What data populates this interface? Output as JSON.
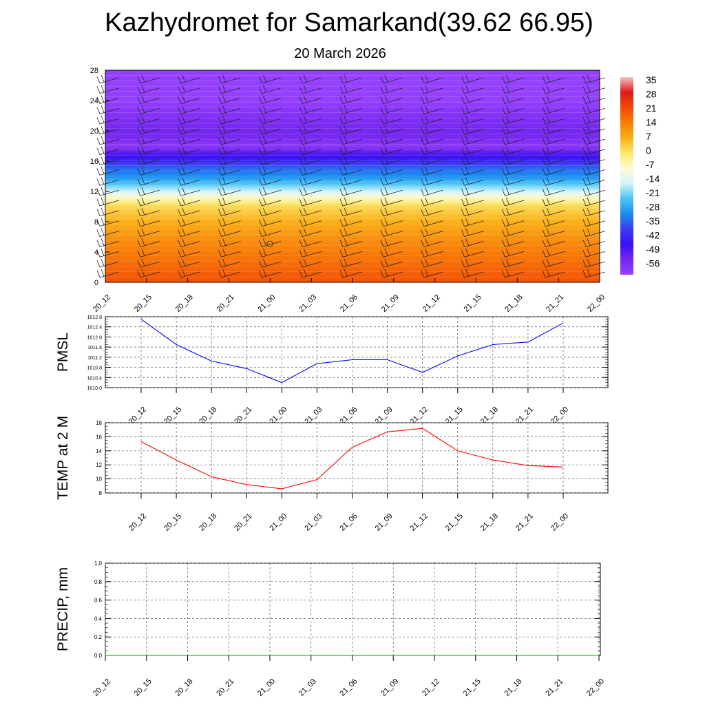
{
  "title": "Kazhydromet for Samarkand(39.62 66.95)",
  "subtitle": "20 March 2026",
  "colorbar": {
    "labels": [
      "35",
      "28",
      "21",
      "14",
      "7",
      "0",
      "-7",
      "-14",
      "-21",
      "-28",
      "-35",
      "-42",
      "-49",
      "-56"
    ],
    "stops": [
      "#f5c0c0",
      "#e01818",
      "#f24a06",
      "#f87d08",
      "#fbb01a",
      "#fde86a",
      "#fffbd6",
      "#d2f3fc",
      "#4dc4f4",
      "#1a8ef0",
      "#3d3cf0",
      "#3a0ff2",
      "#7526ee",
      "#9640ff"
    ]
  },
  "time_labels": [
    "20_12",
    "20_15",
    "20_18",
    "20_21",
    "21_00",
    "21_03",
    "21_06",
    "21_09",
    "21_12",
    "21_15",
    "21_18",
    "21_21",
    "22_00"
  ],
  "chart_data": [
    {
      "type": "heatmap",
      "title": "",
      "ylabel": "",
      "xlabel": "",
      "ylim": [
        0,
        28
      ],
      "yticks": [
        "0",
        "4",
        "8",
        "12",
        "16",
        "20",
        "24",
        "28"
      ],
      "categories": [
        "20_12",
        "20_15",
        "20_18",
        "20_21",
        "21_00",
        "21_03",
        "21_06",
        "21_09",
        "21_12",
        "21_15",
        "21_18",
        "21_21",
        "22_00"
      ],
      "value_range": [
        -56,
        35
      ],
      "profile": {
        "level": [
          0,
          2,
          4,
          6,
          8,
          10,
          11.3,
          12,
          13,
          14,
          15,
          16,
          17,
          18,
          19,
          20,
          22,
          24,
          28
        ],
        "value": [
          20,
          17,
          14,
          11,
          7,
          2,
          -7,
          -14,
          -21,
          -28,
          -31,
          -38,
          -45,
          -54,
          -50,
          -49,
          -52,
          -56,
          -58
        ]
      }
    },
    {
      "type": "line",
      "title": "",
      "xlabel": "",
      "ylabel": "PMSL",
      "ylim": [
        1010.0,
        1012.8
      ],
      "yticks": [
        "1010.0",
        "1010.4",
        "1010.8",
        "1011.2",
        "1011.6",
        "1012.0",
        "1012.4",
        "1012.8"
      ],
      "categories": [
        "20_12",
        "20_15",
        "20_18",
        "20_21",
        "21_00",
        "21_03",
        "21_06",
        "21_09",
        "21_12",
        "21_15",
        "21_18",
        "21_21",
        "22_00"
      ],
      "series": [
        {
          "color": "#0000ff",
          "values": [
            1012.7,
            1011.7,
            1011.05,
            1010.75,
            1010.2,
            1010.95,
            1011.1,
            1011.1,
            1010.6,
            1011.25,
            1011.7,
            1011.8,
            1012.55
          ]
        }
      ]
    },
    {
      "type": "line",
      "title": "",
      "xlabel": "",
      "ylabel": "TEMP at 2 M",
      "ylim": [
        8,
        18
      ],
      "yticks": [
        "8",
        "10",
        "12",
        "14",
        "16",
        "18"
      ],
      "categories": [
        "20_12",
        "20_15",
        "20_18",
        "20_21",
        "21_00",
        "21_03",
        "21_06",
        "21_09",
        "21_12",
        "21_15",
        "21_18",
        "21_21",
        "22_00"
      ],
      "series": [
        {
          "color": "#ff0000",
          "values": [
            15.3,
            12.7,
            10.3,
            9.2,
            8.6,
            9.9,
            14.5,
            16.7,
            17.2,
            14.0,
            12.7,
            11.9,
            11.7
          ]
        }
      ]
    },
    {
      "type": "line",
      "title": "",
      "xlabel": "",
      "ylabel": "PRECIP, mm",
      "ylim": [
        0.0,
        1.0
      ],
      "yticks": [
        "0.0",
        "0.2",
        "0.4",
        "0.6",
        "0.8",
        "1.0"
      ],
      "categories": [
        "20_12",
        "20_15",
        "20_18",
        "20_21",
        "21_00",
        "21_03",
        "21_06",
        "21_09",
        "21_12",
        "21_15",
        "21_18",
        "21_21",
        "22_00"
      ],
      "series": [
        {
          "color": "#00a000",
          "values": [
            0,
            0,
            0,
            0,
            0,
            0,
            0,
            0,
            0,
            0,
            0,
            0,
            0
          ]
        }
      ]
    }
  ]
}
